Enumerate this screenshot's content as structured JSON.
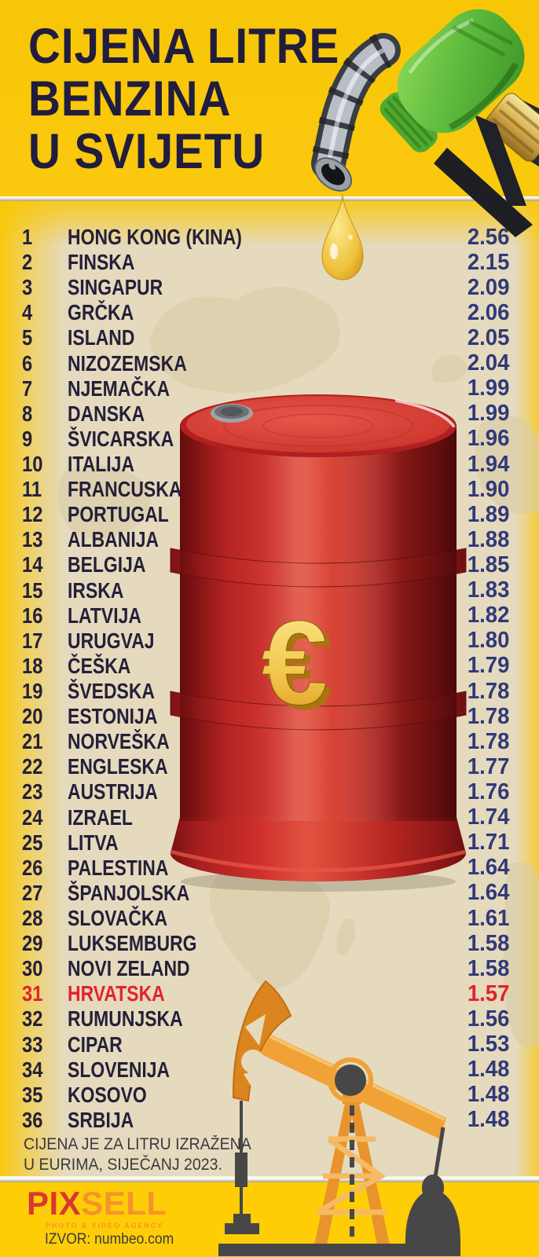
{
  "header": {
    "title_lines": [
      "CIJENA LITRE",
      "BENZINA",
      "U SVIJETU"
    ]
  },
  "list": {
    "rows": [
      {
        "rank": "1",
        "country": "HONG KONG (KINA)",
        "price": "2.56",
        "highlight": false
      },
      {
        "rank": "2",
        "country": "FINSKA",
        "price": "2.15",
        "highlight": false
      },
      {
        "rank": "3",
        "country": "SINGAPUR",
        "price": "2.09",
        "highlight": false
      },
      {
        "rank": "4",
        "country": "GRČKA",
        "price": "2.06",
        "highlight": false
      },
      {
        "rank": "5",
        "country": "ISLAND",
        "price": "2.05",
        "highlight": false
      },
      {
        "rank": "6",
        "country": "NIZOZEMSKA",
        "price": "2.04",
        "highlight": false
      },
      {
        "rank": "7",
        "country": "NJEMAČKA",
        "price": "1.99",
        "highlight": false
      },
      {
        "rank": "8",
        "country": "DANSKA",
        "price": "1.99",
        "highlight": false
      },
      {
        "rank": "9",
        "country": "ŠVICARSKA",
        "price": "1.96",
        "highlight": false
      },
      {
        "rank": "10",
        "country": "ITALIJA",
        "price": "1.94",
        "highlight": false
      },
      {
        "rank": "11",
        "country": "FRANCUSKA",
        "price": "1.90",
        "highlight": false
      },
      {
        "rank": "12",
        "country": "PORTUGAL",
        "price": "1.89",
        "highlight": false
      },
      {
        "rank": "13",
        "country": "ALBANIJA",
        "price": "1.88",
        "highlight": false
      },
      {
        "rank": "14",
        "country": "BELGIJA",
        "price": "1.85",
        "highlight": false
      },
      {
        "rank": "15",
        "country": "IRSKA",
        "price": "1.83",
        "highlight": false
      },
      {
        "rank": "16",
        "country": "LATVIJA",
        "price": "1.82",
        "highlight": false
      },
      {
        "rank": "17",
        "country": "URUGVAJ",
        "price": "1.80",
        "highlight": false
      },
      {
        "rank": "18",
        "country": "ČEŠKA",
        "price": "1.79",
        "highlight": false
      },
      {
        "rank": "19",
        "country": "ŠVEDSKA",
        "price": "1.78",
        "highlight": false
      },
      {
        "rank": "20",
        "country": "ESTONIJA",
        "price": "1.78",
        "highlight": false
      },
      {
        "rank": "21",
        "country": "NORVEŠKA",
        "price": "1.78",
        "highlight": false
      },
      {
        "rank": "22",
        "country": "ENGLESKA",
        "price": "1.77",
        "highlight": false
      },
      {
        "rank": "23",
        "country": "AUSTRIJA",
        "price": "1.76",
        "highlight": false
      },
      {
        "rank": "24",
        "country": "IZRAEL",
        "price": "1.74",
        "highlight": false
      },
      {
        "rank": "25",
        "country": "LITVA",
        "price": "1.71",
        "highlight": false
      },
      {
        "rank": "26",
        "country": "PALESTINA",
        "price": "1.64",
        "highlight": false
      },
      {
        "rank": "27",
        "country": "ŠPANJOLSKA",
        "price": "1.64",
        "highlight": false
      },
      {
        "rank": "28",
        "country": "SLOVAČKA",
        "price": "1.61",
        "highlight": false
      },
      {
        "rank": "29",
        "country": "LUKSEMBURG",
        "price": "1.58",
        "highlight": false
      },
      {
        "rank": "30",
        "country": "NOVI ZELAND",
        "price": "1.58",
        "highlight": false
      },
      {
        "rank": "31",
        "country": "HRVATSKA",
        "price": "1.57",
        "highlight": true
      },
      {
        "rank": "32",
        "country": "RUMUNJSKA",
        "price": "1.56",
        "highlight": false
      },
      {
        "rank": "33",
        "country": "CIPAR",
        "price": "1.53",
        "highlight": false
      },
      {
        "rank": "34",
        "country": "SLOVENIJA",
        "price": "1.48",
        "highlight": false
      },
      {
        "rank": "35",
        "country": "KOSOVO",
        "price": "1.48",
        "highlight": false
      },
      {
        "rank": "36",
        "country": "SRBIJA",
        "price": "1.48",
        "highlight": false
      }
    ]
  },
  "footnote": {
    "line1": "CIJENA JE ZA LITRU IZRAŽENA",
    "line2": "U EURIMA, SIJEČANJ 2023."
  },
  "footer": {
    "logo_pix": "PIX",
    "logo_sell": "SELL",
    "tagline": "PHOTO & VIDEO AGENCY",
    "source": "IZVOR: numbeo.com"
  },
  "graphics": {
    "euro_symbol": "€",
    "icons": [
      "fuel-nozzle-icon",
      "oil-drop-icon",
      "oil-barrel-icon",
      "euro-icon",
      "oil-pump-jack-icon",
      "world-map-watermark"
    ]
  },
  "colors": {
    "header_yellow": "#F8C607",
    "footer_yellow": "#FFCD06",
    "background_beige": "#E5DABD",
    "title_navy": "#201D3E",
    "country_navy": "#242039",
    "price_navy": "#30397A",
    "highlight_red": "#E2232A",
    "barrel_red": "#C62A28",
    "euro_gold": "#F3C94F",
    "pump_orange": "#E8932C",
    "pump_dark_gray": "#474747",
    "logo_red": "#D93831",
    "logo_orange": "#F5932C"
  },
  "chart_data": {
    "type": "table",
    "title": "CIJENA LITRE BENZINA U SVIJETU",
    "unit": "EUR per litre",
    "note": "CIJENA JE ZA LITRU IZRAŽENA U EURIMA, SIJEČANJ 2023.",
    "source": "numbeo.com",
    "highlight_country": "HRVATSKA",
    "highlight_rank": 31,
    "categories": [
      "HONG KONG (KINA)",
      "FINSKA",
      "SINGAPUR",
      "GRČKA",
      "ISLAND",
      "NIZOZEMSKA",
      "NJEMAČKA",
      "DANSKA",
      "ŠVICARSKA",
      "ITALIJA",
      "FRANCUSKA",
      "PORTUGAL",
      "ALBANIJA",
      "BELGIJA",
      "IRSKA",
      "LATVIJA",
      "URUGVAJ",
      "ČEŠKA",
      "ŠVEDSKA",
      "ESTONIJA",
      "NORVEŠKA",
      "ENGLESKA",
      "AUSTRIJA",
      "IZRAEL",
      "LITVA",
      "PALESTINA",
      "ŠPANJOLSKA",
      "SLOVAČKA",
      "LUKSEMBURG",
      "NOVI ZELAND",
      "HRVATSKA",
      "RUMUNJSKA",
      "CIPAR",
      "SLOVENIJA",
      "KOSOVO",
      "SRBIJA"
    ],
    "values": [
      2.56,
      2.15,
      2.09,
      2.06,
      2.05,
      2.04,
      1.99,
      1.99,
      1.96,
      1.94,
      1.9,
      1.89,
      1.88,
      1.85,
      1.83,
      1.82,
      1.8,
      1.79,
      1.78,
      1.78,
      1.78,
      1.77,
      1.76,
      1.74,
      1.71,
      1.64,
      1.64,
      1.61,
      1.58,
      1.58,
      1.57,
      1.56,
      1.53,
      1.48,
      1.48,
      1.48
    ]
  }
}
